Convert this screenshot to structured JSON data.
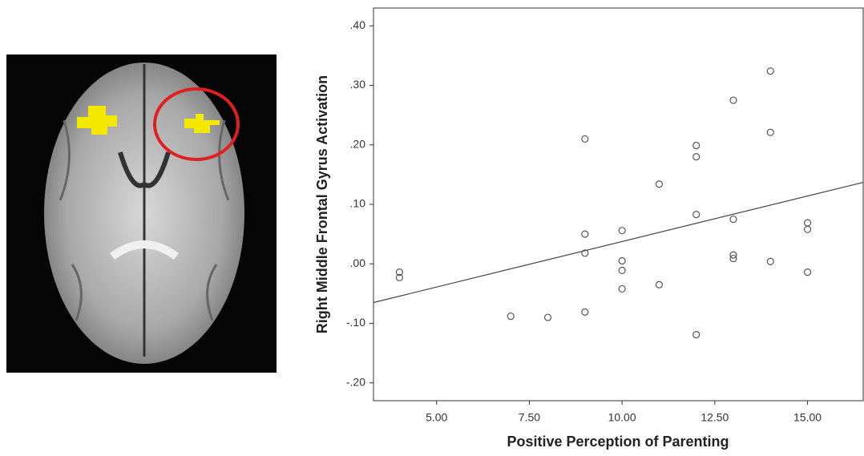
{
  "chart_data": {
    "type": "scatter",
    "xlabel": "Positive Perception of Parenting",
    "ylabel": "Right Middle Frontal Gyrus Activation",
    "x": [
      4,
      4,
      7,
      8,
      9,
      9,
      9,
      9,
      10,
      10,
      10,
      10,
      11,
      11,
      12,
      12,
      12,
      12,
      13,
      13,
      13,
      13,
      14,
      14,
      14,
      15,
      15,
      15
    ],
    "values": [
      -0.014,
      -0.023,
      -0.088,
      -0.09,
      0.21,
      0.05,
      0.018,
      -0.081,
      0.056,
      0.005,
      -0.011,
      -0.042,
      0.134,
      -0.035,
      0.199,
      0.18,
      0.083,
      -0.119,
      0.275,
      0.075,
      0.015,
      0.009,
      0.324,
      0.221,
      0.004,
      0.069,
      0.058,
      -0.014
    ],
    "color": "#555555",
    "fit_line": {
      "x": [
        3.3,
        16.5
      ],
      "y": [
        -0.065,
        0.137
      ],
      "color": "#444444"
    },
    "xlim": [
      3.3,
      16.5
    ],
    "ylim": [
      -0.23,
      0.43
    ],
    "xticks": [
      {
        "value": 5,
        "label": "5.00"
      },
      {
        "value": 7.5,
        "label": "7.50"
      },
      {
        "value": 10,
        "label": "10.00"
      },
      {
        "value": 12.5,
        "label": "12.50"
      },
      {
        "value": 15,
        "label": "15.00"
      }
    ],
    "yticks": [
      {
        "value": 0.4,
        "label": ".40"
      },
      {
        "value": 0.3,
        "label": ".30"
      },
      {
        "value": 0.2,
        "label": ".20"
      },
      {
        "value": 0.1,
        "label": ".10"
      },
      {
        "value": 0,
        "label": ".00"
      },
      {
        "value": -0.1,
        "label": "-.10"
      },
      {
        "value": -0.2,
        "label": "-.20"
      }
    ]
  }
}
